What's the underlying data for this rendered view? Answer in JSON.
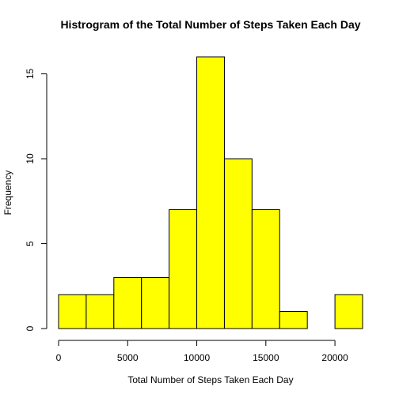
{
  "chart_data": {
    "type": "bar",
    "subtype": "histogram",
    "title": "Histrogram of the Total Number of Steps Taken Each Day",
    "xlabel": "Total Number of Steps Taken Each Day",
    "ylabel": "Frequency",
    "bin_edges": [
      0,
      2000,
      4000,
      6000,
      8000,
      10000,
      12000,
      14000,
      16000,
      18000,
      20000,
      22000
    ],
    "values": [
      2,
      2,
      3,
      3,
      7,
      16,
      10,
      7,
      1,
      0,
      2
    ],
    "xlim": [
      0,
      22000
    ],
    "ylim": [
      0,
      16
    ],
    "x_ticks": [
      0,
      5000,
      10000,
      15000,
      20000
    ],
    "x_tick_labels": [
      "0",
      "5000",
      "10000",
      "15000",
      "20000"
    ],
    "y_ticks": [
      0,
      5,
      10,
      15
    ],
    "y_tick_labels": [
      "0",
      "5",
      "10",
      "15"
    ],
    "grid": false,
    "bar_color": "#ffff00",
    "bar_edge_color": "#000000"
  }
}
